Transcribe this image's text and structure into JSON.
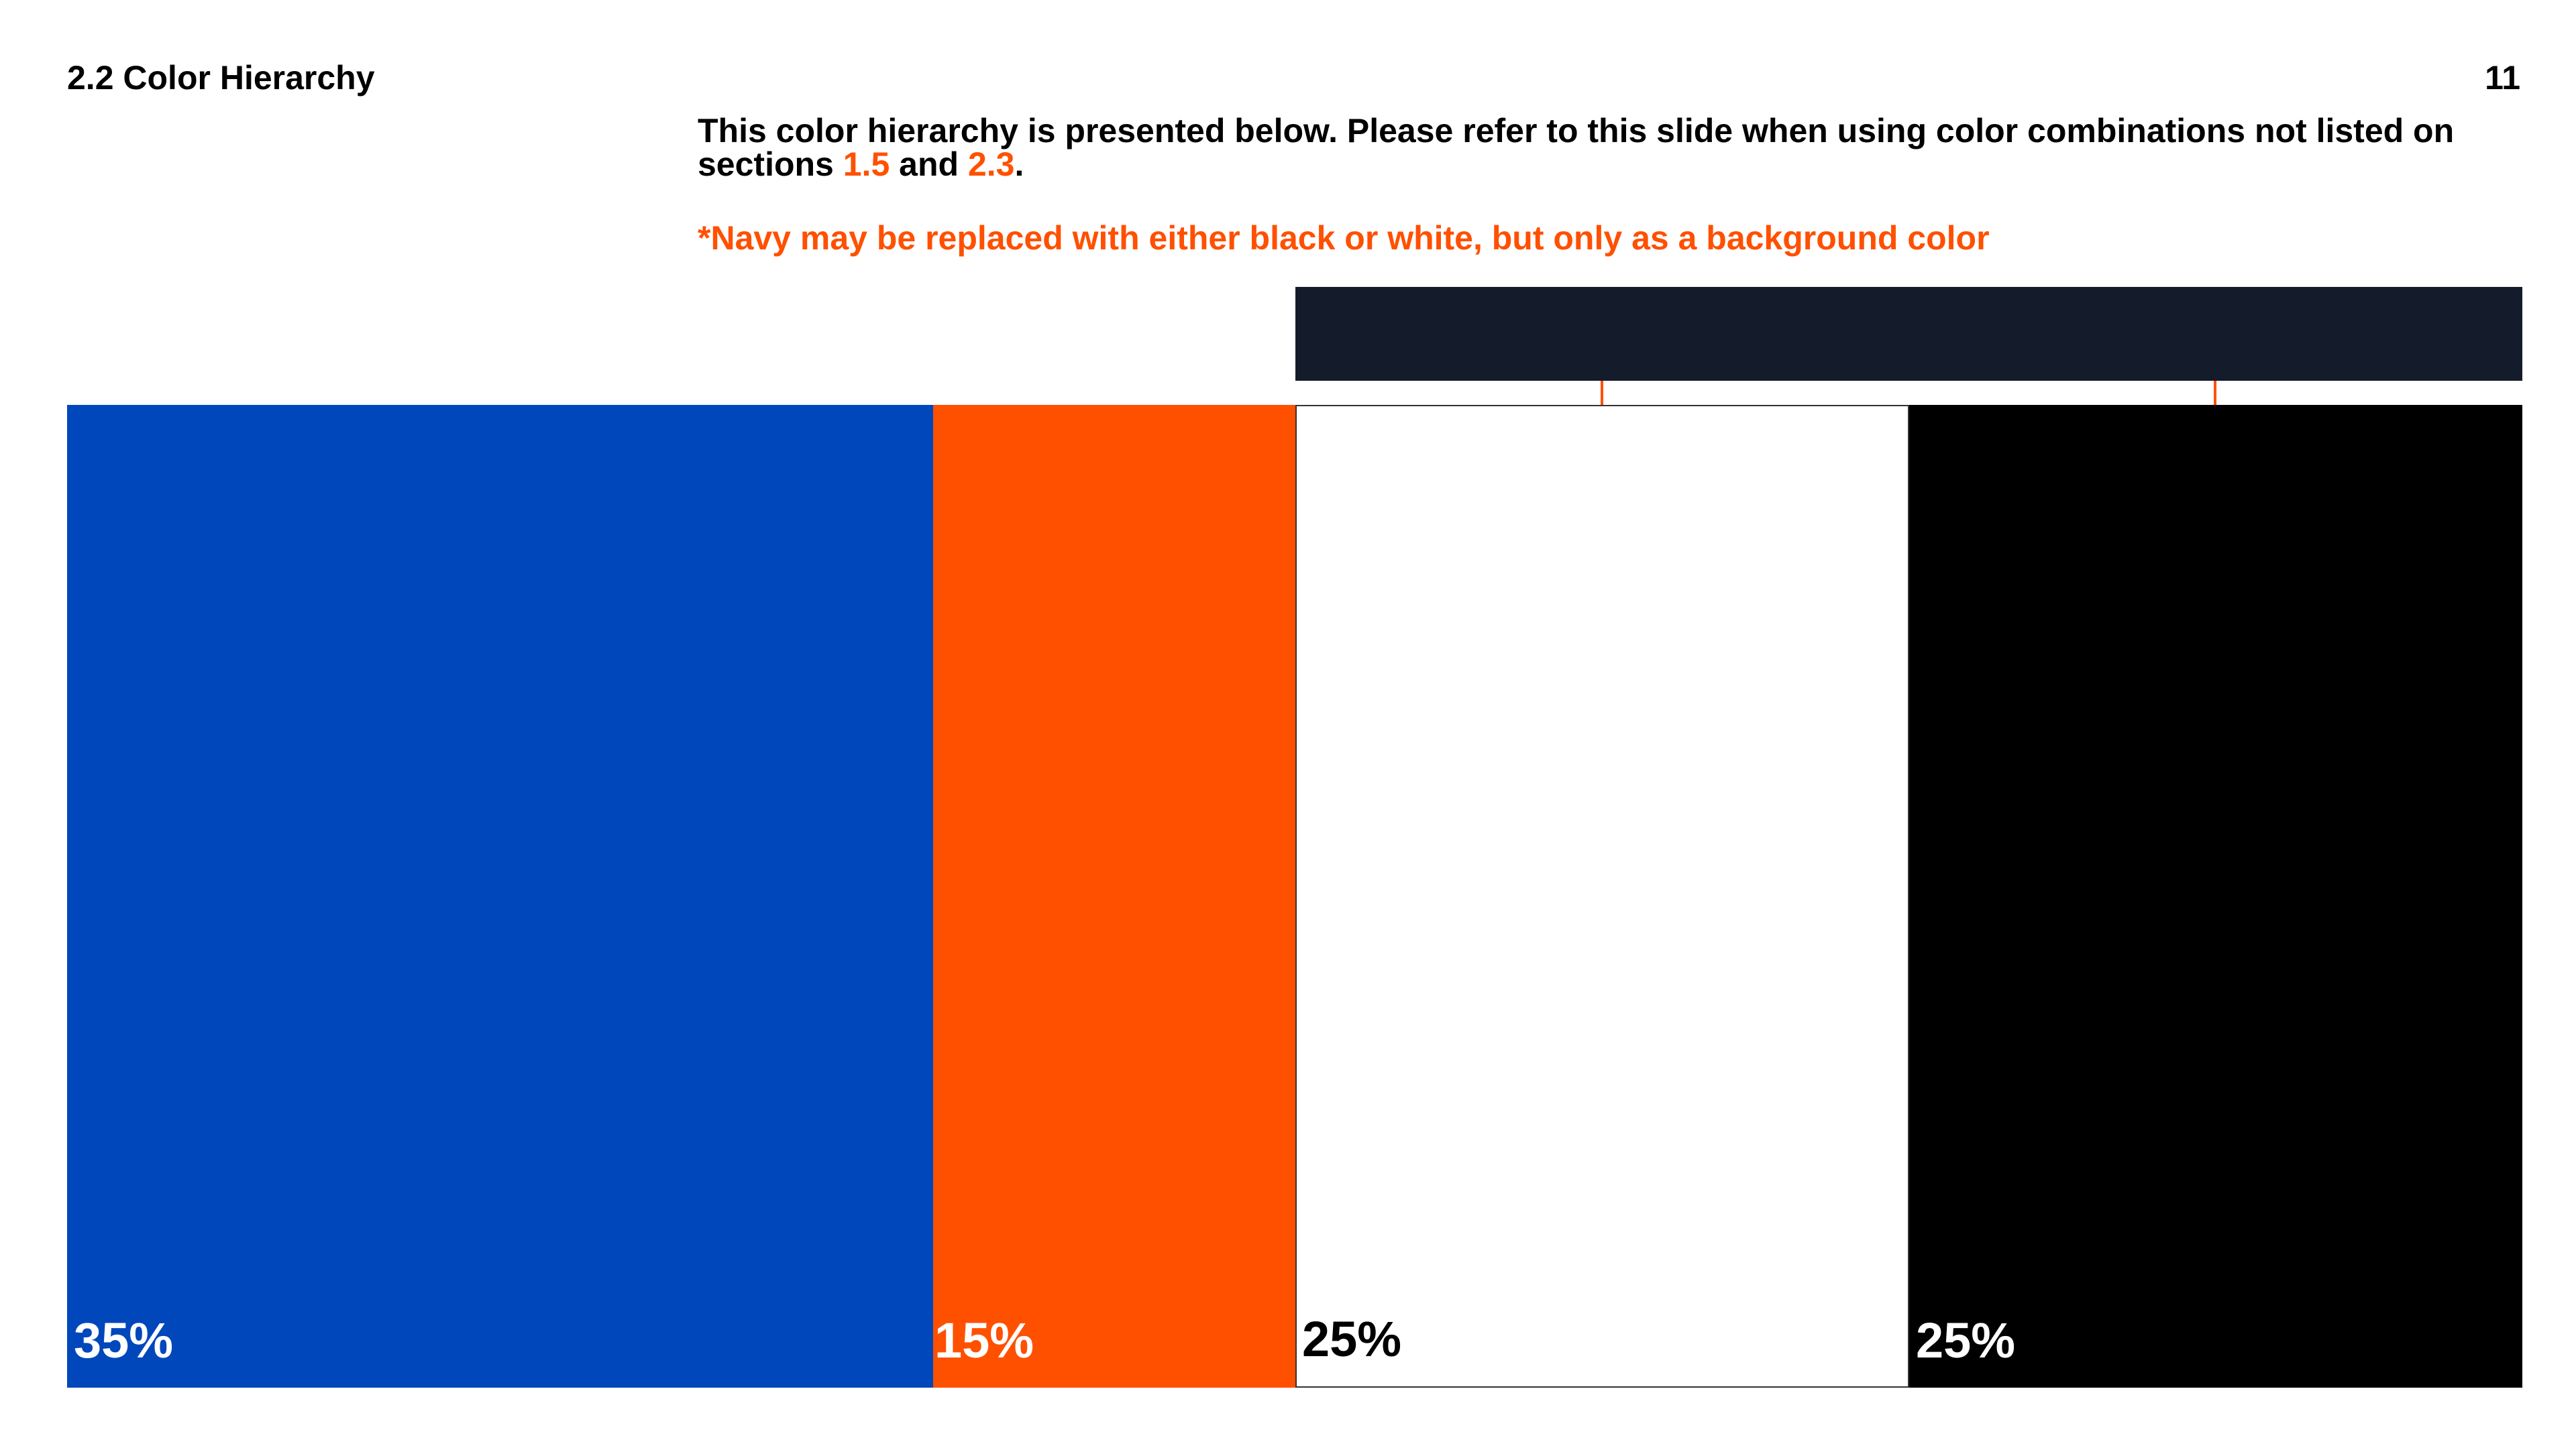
{
  "header": {
    "section_title": "2.2 Color Hierarchy",
    "page_number": "11"
  },
  "intro": {
    "text_part1": "This color hierarchy is presented below. Please refer to this slide when using color combinations not listed on sections ",
    "link1": "1.5",
    "text_part2": " and ",
    "link2": "2.3",
    "text_part3": "."
  },
  "note": "*Navy may be replaced with either black or white, but only as a background color",
  "colors": {
    "navy": "#141c2b",
    "blue": "#0047bb",
    "orange": "#ff5000",
    "white": "#ffffff",
    "black": "#000000"
  },
  "swatches": [
    {
      "color": "blue",
      "percent": "35%",
      "share": 35
    },
    {
      "color": "orange",
      "percent": "15%",
      "share": 15
    },
    {
      "color": "white",
      "percent": "25%",
      "share": 25
    },
    {
      "color": "black",
      "percent": "25%",
      "share": 25
    }
  ]
}
